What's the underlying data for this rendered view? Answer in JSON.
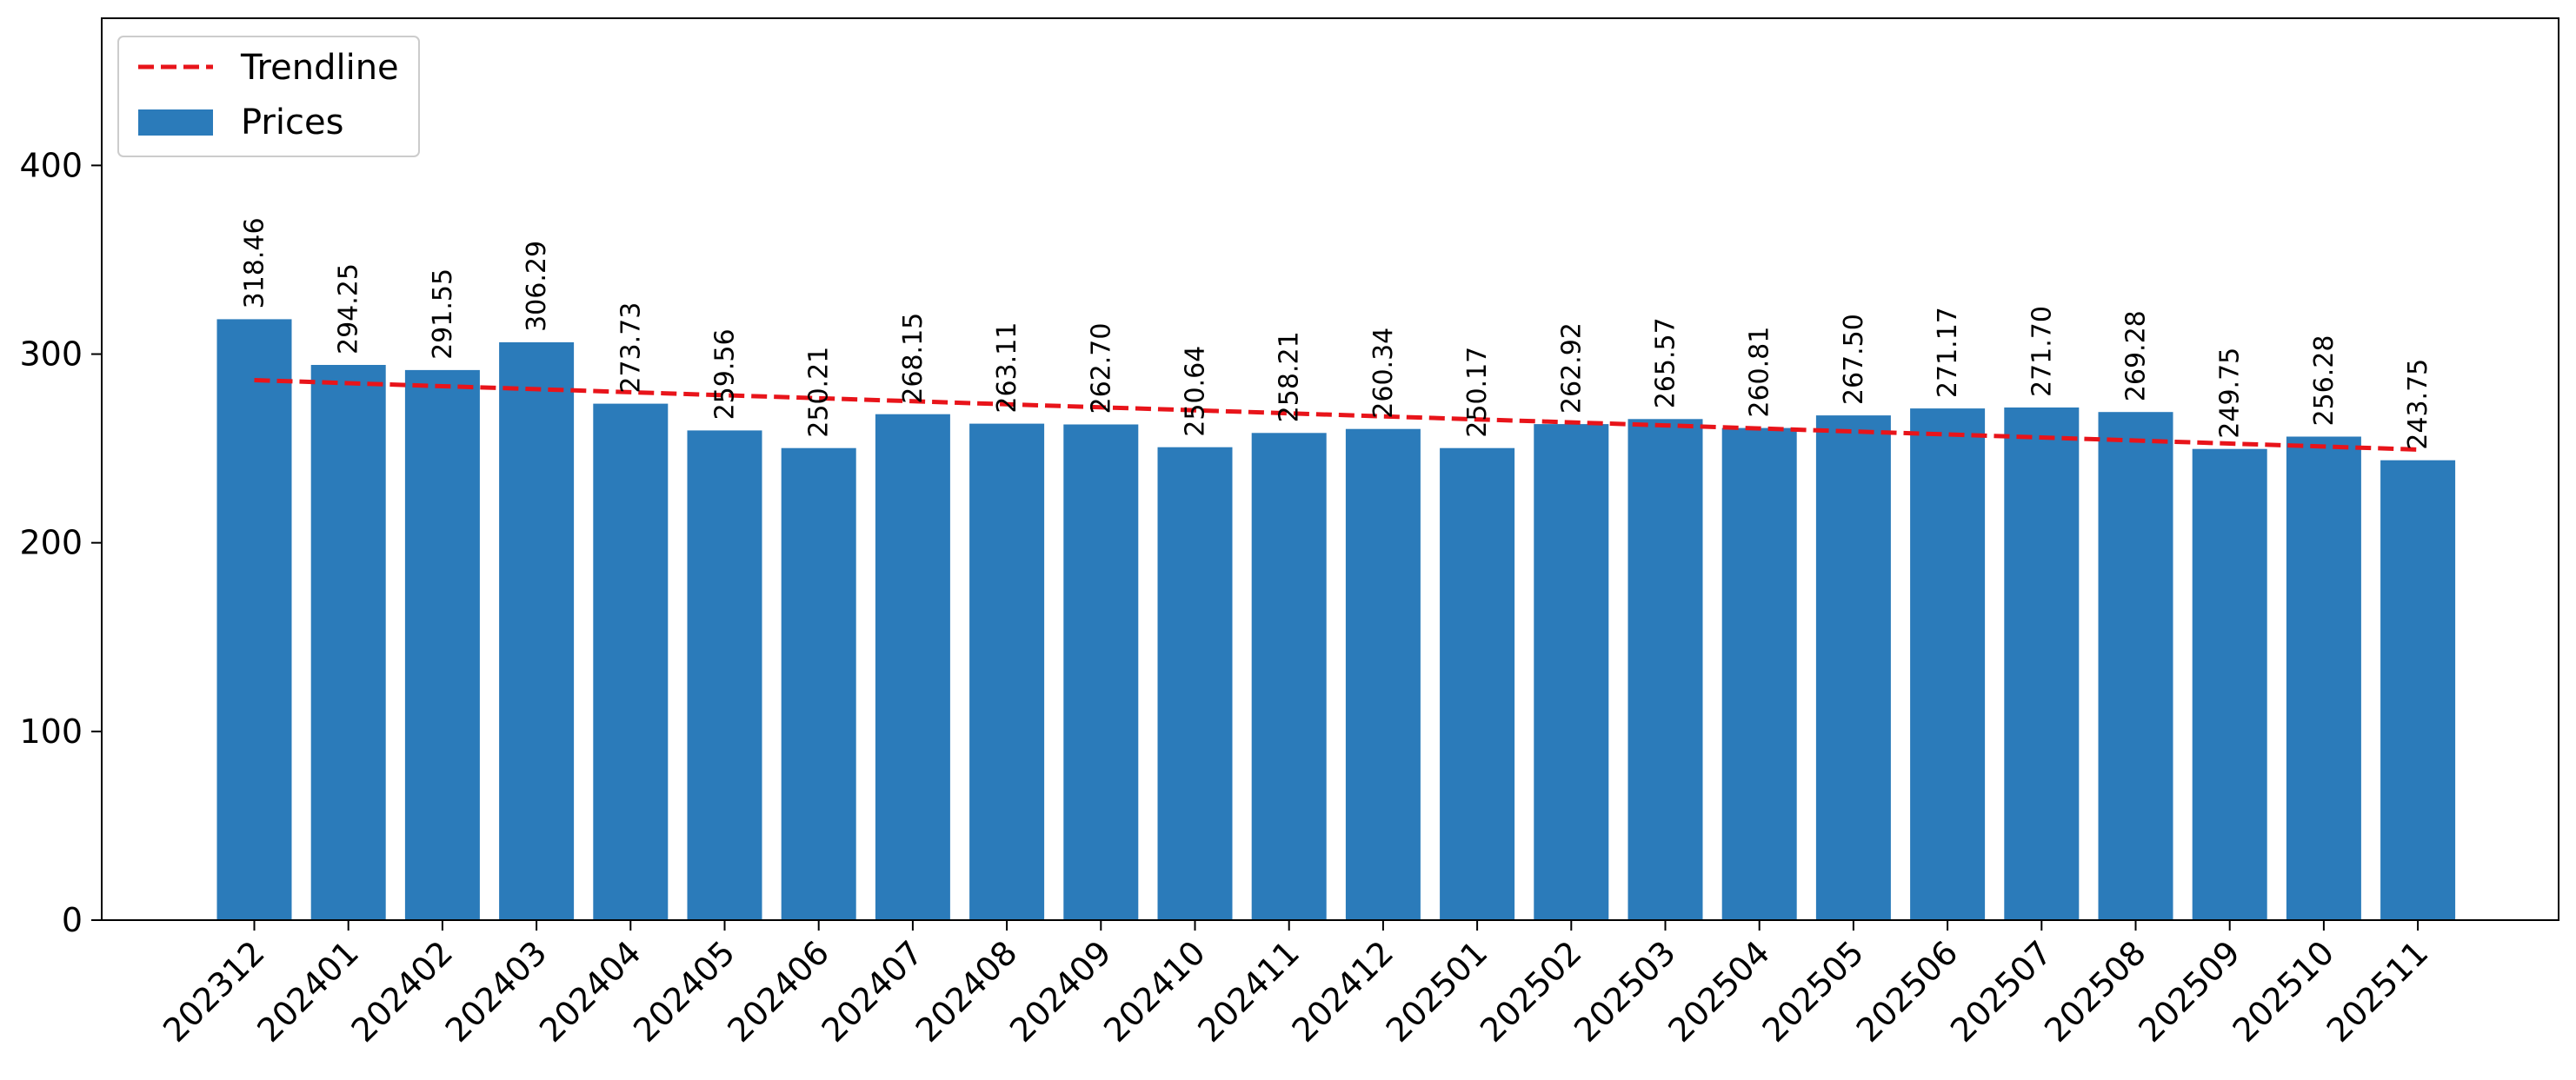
{
  "chart_data": {
    "type": "bar",
    "categories": [
      "202312",
      "202401",
      "202402",
      "202403",
      "202404",
      "202405",
      "202406",
      "202407",
      "202408",
      "202409",
      "202410",
      "202411",
      "202412",
      "202501",
      "202502",
      "202503",
      "202504",
      "202505",
      "202506",
      "202507",
      "202508",
      "202509",
      "202510",
      "202511"
    ],
    "series": [
      {
        "name": "Prices",
        "type": "bar",
        "color": "#2b7bba",
        "values": [
          318.46,
          294.25,
          291.55,
          306.29,
          273.73,
          259.56,
          250.21,
          268.15,
          263.11,
          262.7,
          250.64,
          258.21,
          260.34,
          250.17,
          262.92,
          265.57,
          260.81,
          267.5,
          271.17,
          271.7,
          269.28,
          249.75,
          256.28,
          243.75
        ],
        "labels": [
          "318.46",
          "294.25",
          "291.55",
          "306.29",
          "273.73",
          "259.56",
          "250.21",
          "268.15",
          "263.11",
          "262.70",
          "250.64",
          "258.21",
          "260.34",
          "250.17",
          "262.92",
          "265.57",
          "260.81",
          "267.50",
          "271.17",
          "271.70",
          "269.28",
          "249.75",
          "256.28",
          "243.75"
        ]
      },
      {
        "name": "Trendline",
        "type": "line",
        "style": "dashed",
        "color": "#e8141a",
        "values": [
          286.2,
          284.6,
          283.0,
          281.4,
          279.8,
          278.2,
          276.6,
          275.0,
          273.4,
          271.8,
          270.2,
          268.6,
          267.0,
          265.4,
          263.8,
          262.2,
          260.6,
          259.0,
          257.4,
          255.8,
          254.2,
          252.6,
          251.0,
          249.4
        ]
      }
    ],
    "ylim": [
      0,
      478
    ],
    "yticks": [
      0,
      100,
      200,
      300,
      400
    ],
    "xlabel": "",
    "ylabel": "",
    "title": "",
    "grid": false,
    "legend_placement": "top-left",
    "xtick_rotation": 45
  }
}
